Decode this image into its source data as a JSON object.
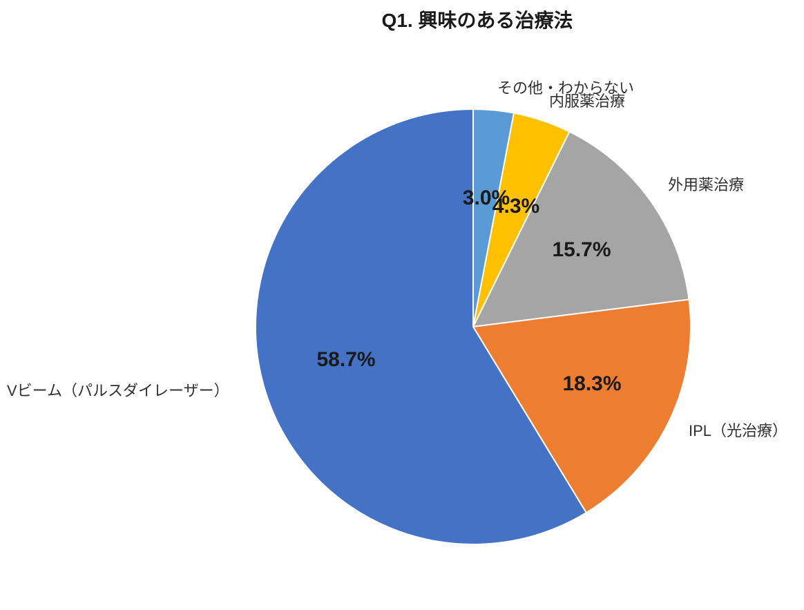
{
  "title": "Q1. 興味のある治療法",
  "chart_data": {
    "type": "pie",
    "title": "Q1. 興味のある治療法",
    "start_angle": "top",
    "direction": "clockwise",
    "legend_position": "none",
    "background": "#ffffff",
    "text_color": "#1a1a1a",
    "slices": [
      {
        "label": "その他・わからない",
        "value": 3.0,
        "percent_label": "3.0%",
        "color": "#5B9BD5"
      },
      {
        "label": "内服薬治療",
        "value": 4.3,
        "percent_label": "4.3%",
        "color": "#FFC000"
      },
      {
        "label": "外用薬治療",
        "value": 15.7,
        "percent_label": "15.7%",
        "color": "#A5A5A5"
      },
      {
        "label": "IPL（光治療）",
        "value": 18.3,
        "percent_label": "18.3%",
        "color": "#ED7D31"
      },
      {
        "label": "Vビーム（パルスダイレーザー）",
        "value": 58.7,
        "percent_label": "58.7%",
        "color": "#4472C4"
      }
    ]
  }
}
